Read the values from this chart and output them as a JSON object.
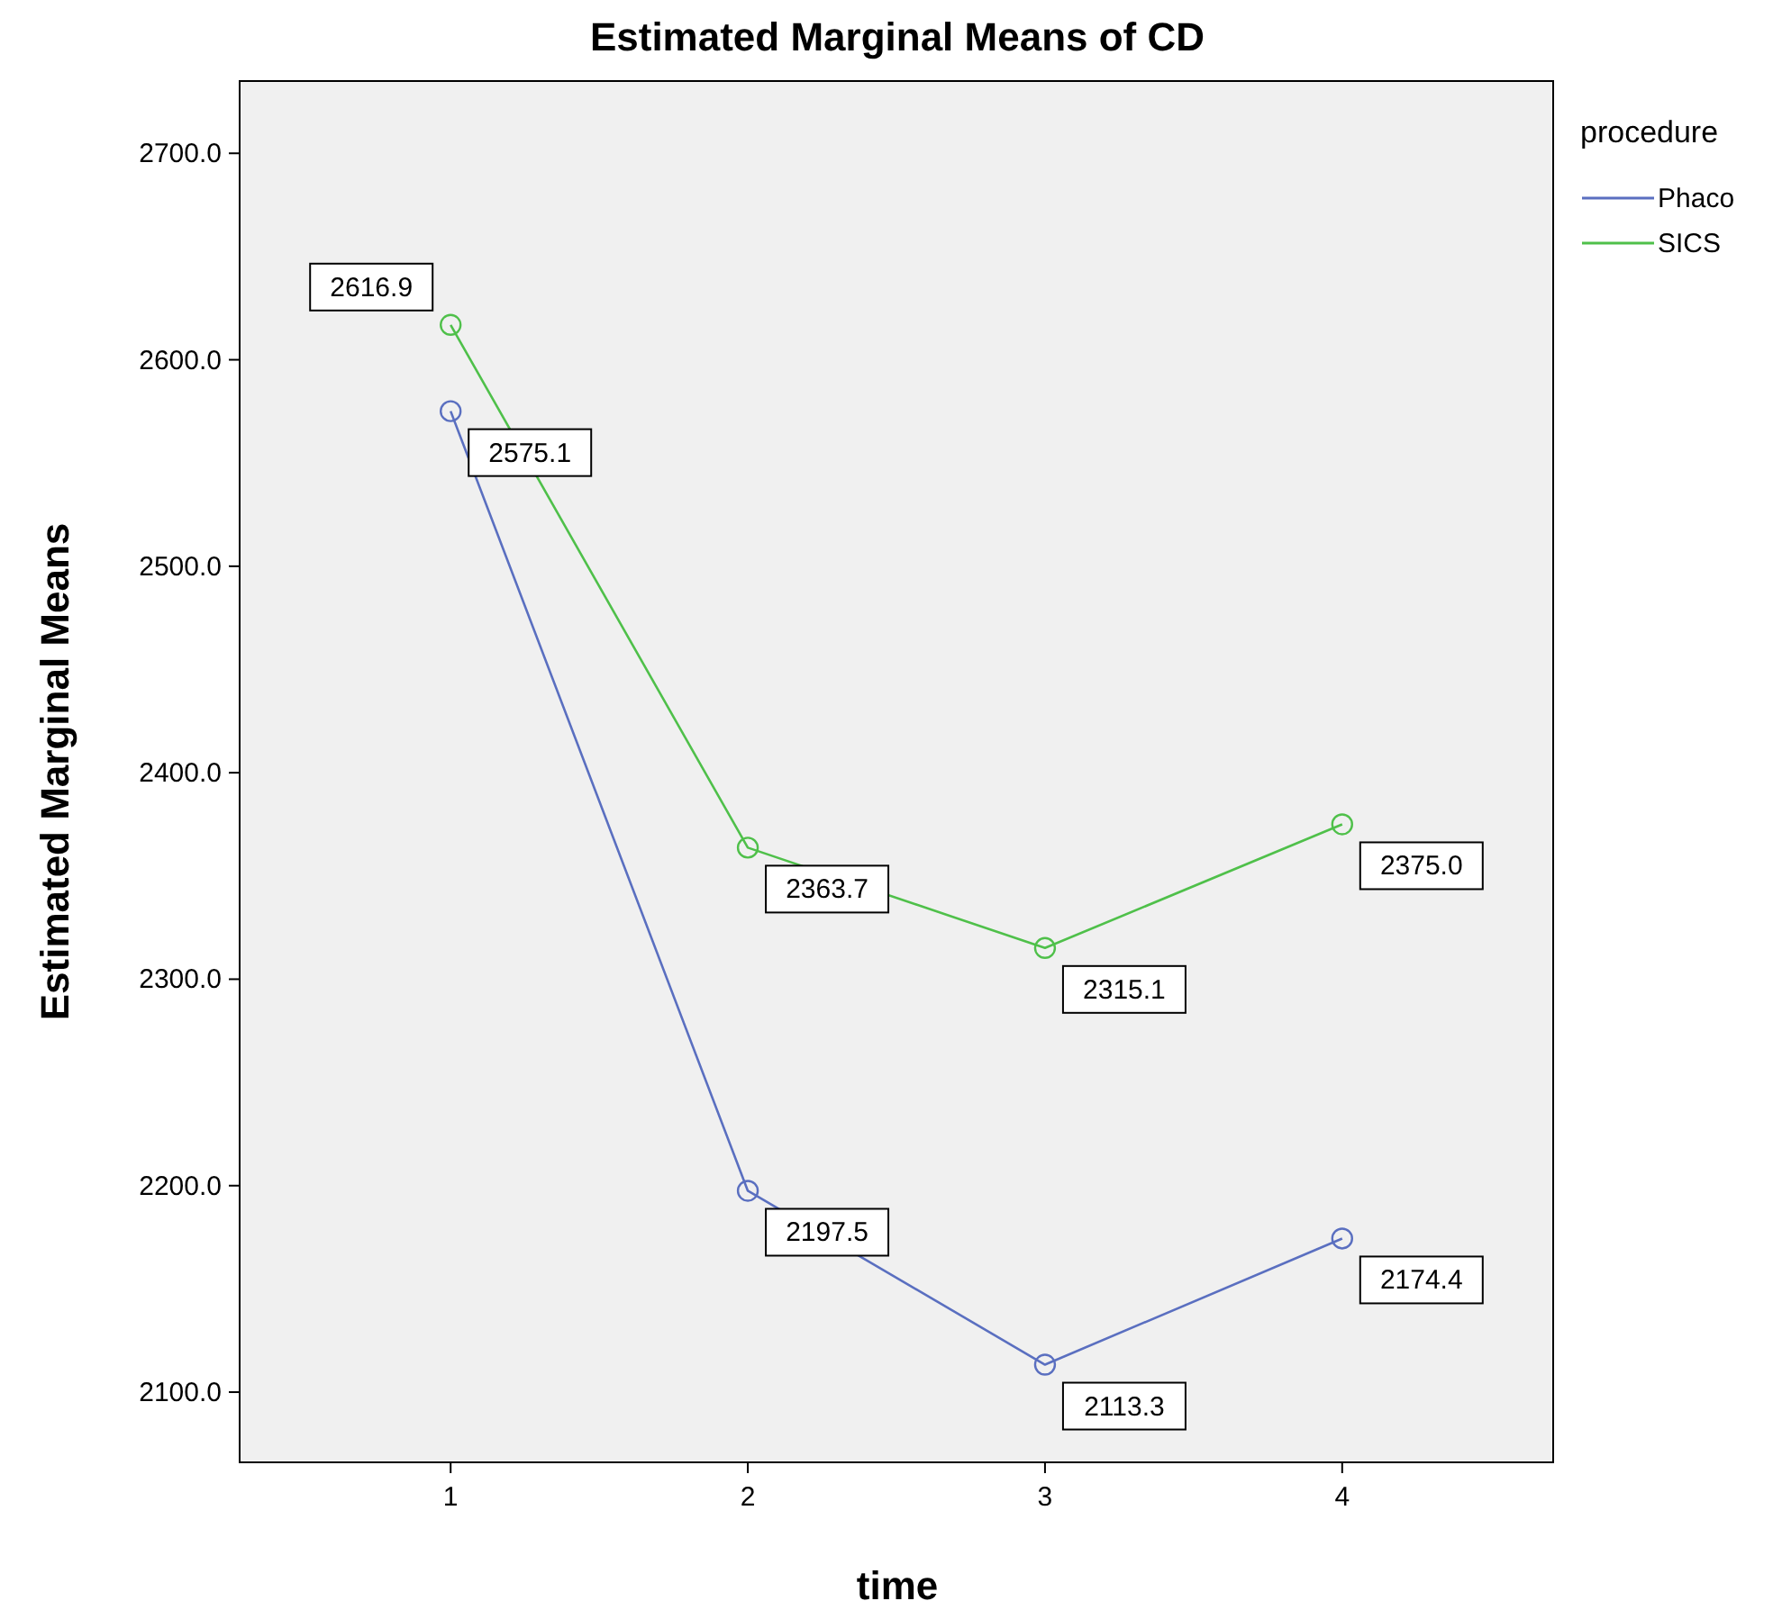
{
  "chart_data": {
    "type": "line",
    "title": "Estimated Marginal Means of CD",
    "xlabel": "time",
    "ylabel": "Estimated Marginal Means",
    "legend_title": "procedure",
    "categories": [
      "1",
      "2",
      "3",
      "4"
    ],
    "series": [
      {
        "name": "Phaco",
        "color": "#5a6fc0",
        "values": [
          2575.1,
          2197.5,
          2113.3,
          2174.4
        ],
        "value_labels": [
          "2575.1",
          "2197.5",
          "2113.3",
          "2174.4"
        ]
      },
      {
        "name": "SICS",
        "color": "#4fc04a",
        "values": [
          2616.9,
          2363.7,
          2315.1,
          2375.0
        ],
        "value_labels": [
          "2616.9",
          "2363.7",
          "2315.1",
          "2375.0"
        ]
      }
    ],
    "ylim": [
      2066,
      2735
    ],
    "yticks": [
      {
        "value": 2100,
        "label": "2100.0"
      },
      {
        "value": 2200,
        "label": "2200.0"
      },
      {
        "value": 2300,
        "label": "2300.0"
      },
      {
        "value": 2400,
        "label": "2400.0"
      },
      {
        "value": 2500,
        "label": "2500.0"
      },
      {
        "value": 2600,
        "label": "2600.0"
      },
      {
        "value": 2700,
        "label": "2700.0"
      }
    ],
    "grid": false,
    "legend": "top right",
    "marker": "circle",
    "line_style": "solid"
  }
}
